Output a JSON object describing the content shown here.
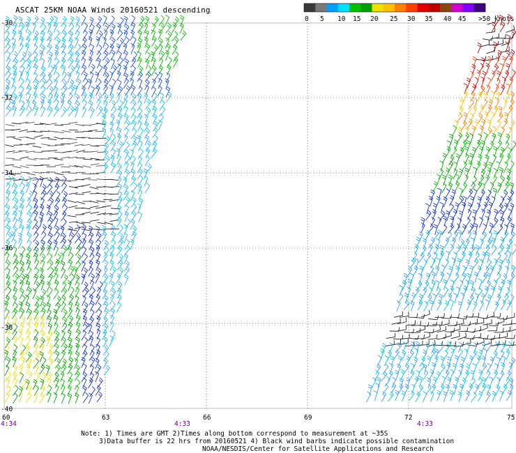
{
  "title": "ASCAT 25KM NOAA Winds 20160521 descending",
  "legend": {
    "colors": [
      "#3a3a3a",
      "#7a7a7a",
      "#00a0ff",
      "#00e0ff",
      "#00c000",
      "#00a000",
      "#f0e000",
      "#ffc000",
      "#ff8000",
      "#ff4000",
      "#e00000",
      "#c00000",
      "#8b4513",
      "#d000d0",
      "#8000ff",
      "#400080"
    ],
    "labels": [
      "0",
      "5",
      "10",
      "15",
      "20",
      "25",
      "30",
      "35",
      "40",
      "45",
      ">50 knots"
    ]
  },
  "map": {
    "lat_labels": [
      "-30",
      "-32",
      "-34",
      "-36",
      "-38",
      "-40"
    ],
    "lon_labels": [
      "60",
      "63",
      "66",
      "69",
      "72",
      "75"
    ],
    "time_labels": [
      "4:34",
      "4:33",
      "4:33"
    ],
    "time_color": "#6a0080"
  },
  "notes": {
    "line1": "Note: 1) Times are GMT 2)Times along bottom correspond to measurement at ~35S",
    "line2": "3)Data buffer is 22 hrs from 20160521 4) Black wind barbs indicate possible contamination",
    "line3": "NOAA/NESDIS/Center for Satellite Applications and Research"
  }
}
